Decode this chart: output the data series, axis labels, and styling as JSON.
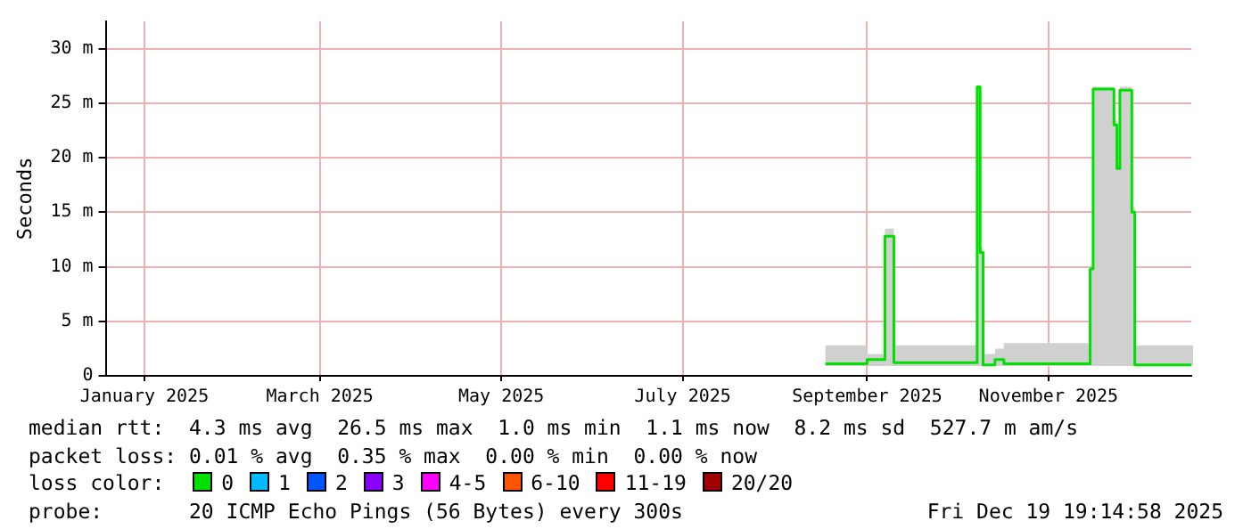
{
  "chart_data": {
    "type": "step",
    "ylabel": "Seconds",
    "legend_title": "loss color:",
    "legend": "bottom",
    "grid": true,
    "marker": "none",
    "xlim": [
      "2024-12-19",
      "2025-12-19"
    ],
    "xticks": [
      {
        "value": "2025-01-01",
        "label": "January 2025"
      },
      {
        "value": "2025-03-01",
        "label": "March 2025"
      },
      {
        "value": "2025-05-01",
        "label": "May 2025"
      },
      {
        "value": "2025-07-01",
        "label": "July 2025"
      },
      {
        "value": "2025-09-01",
        "label": "September 2025"
      },
      {
        "value": "2025-11-01",
        "label": "November 2025"
      }
    ],
    "ylim": [
      0,
      32.5
    ],
    "yticks": [
      0,
      {
        "value": 5,
        "label": "5 m"
      },
      {
        "value": 10,
        "label": "10 m"
      },
      {
        "value": 15,
        "label": "15 m"
      },
      {
        "value": 20,
        "label": "20 m"
      },
      {
        "value": 25,
        "label": "25 m"
      },
      {
        "value": 30,
        "label": "30 m"
      }
    ],
    "x": [
      "2025-08-18",
      "2025-09-01",
      "2025-09-07",
      "2025-09-10",
      "2025-10-08",
      "2025-10-09",
      "2025-10-10",
      "2025-10-14",
      "2025-10-17",
      "2025-11-15",
      "2025-11-16",
      "2025-11-23",
      "2025-11-24",
      "2025-11-25",
      "2025-11-29",
      "2025-11-30",
      "2025-12-19"
    ],
    "series": [
      {
        "name": "0",
        "color": "#00e000",
        "values": [
          1.1,
          1.5,
          12.8,
          1.2,
          26.5,
          11.3,
          1.0,
          1.5,
          1.1,
          9.8,
          26.3,
          23.0,
          19.0,
          26.2,
          15.0,
          1.0,
          1.0
        ],
        "lower": [
          0.9,
          0.9,
          0.9,
          0.9,
          0.9,
          0.9,
          0.9,
          0.9,
          0.9,
          0.9,
          0.9,
          0.9,
          0.9,
          0.9,
          0.9,
          0.9,
          0.9
        ],
        "upper": [
          2.8,
          2.0,
          13.5,
          2.8,
          26.5,
          11.8,
          2.0,
          2.5,
          3.0,
          10.0,
          26.5,
          23.5,
          19.5,
          26.5,
          15.5,
          2.8,
          2.8
        ]
      },
      {
        "name": "1",
        "color": "#00bbff",
        "values": [
          null,
          null,
          null,
          null,
          null,
          null,
          null,
          null,
          null,
          null,
          null,
          null,
          null,
          null,
          null,
          null,
          null
        ]
      },
      {
        "name": "2",
        "color": "#0055ff",
        "values": [
          null,
          null,
          null,
          null,
          null,
          null,
          null,
          null,
          null,
          null,
          null,
          null,
          null,
          null,
          null,
          null,
          null
        ]
      },
      {
        "name": "3",
        "color": "#8800ff",
        "values": [
          null,
          null,
          null,
          null,
          null,
          null,
          null,
          null,
          null,
          null,
          null,
          null,
          null,
          null,
          null,
          null,
          null
        ]
      },
      {
        "name": "4-5",
        "color": "#ff00ff",
        "values": [
          null,
          null,
          null,
          null,
          null,
          null,
          null,
          null,
          null,
          null,
          null,
          null,
          null,
          null,
          null,
          null,
          null
        ]
      },
      {
        "name": "6-10",
        "color": "#ff5500",
        "values": [
          null,
          null,
          null,
          null,
          null,
          null,
          null,
          null,
          null,
          null,
          null,
          null,
          null,
          null,
          null,
          null,
          null
        ]
      },
      {
        "name": "11-19",
        "color": "#ff0000",
        "values": [
          null,
          null,
          null,
          null,
          null,
          null,
          null,
          null,
          null,
          null,
          null,
          null,
          null,
          null,
          null,
          null,
          null
        ]
      },
      {
        "name": "20/20",
        "color": "#a10000",
        "values": [
          null,
          null,
          null,
          null,
          null,
          null,
          null,
          null,
          null,
          null,
          null,
          null,
          null,
          null,
          null,
          null,
          null
        ]
      }
    ],
    "annotations": [
      "median rtt:  4.3 ms avg  26.5 ms max  1.0 ms min  1.1 ms now  8.2 ms sd  527.7 m am/s",
      "packet loss: 0.01 % avg  0.35 % max  0.00 % min  0.00 % now",
      "probe:       20 ICMP Echo Pings (56 Bytes) every 300s",
      "Fri Dec 19 19:14:58 2025"
    ]
  }
}
